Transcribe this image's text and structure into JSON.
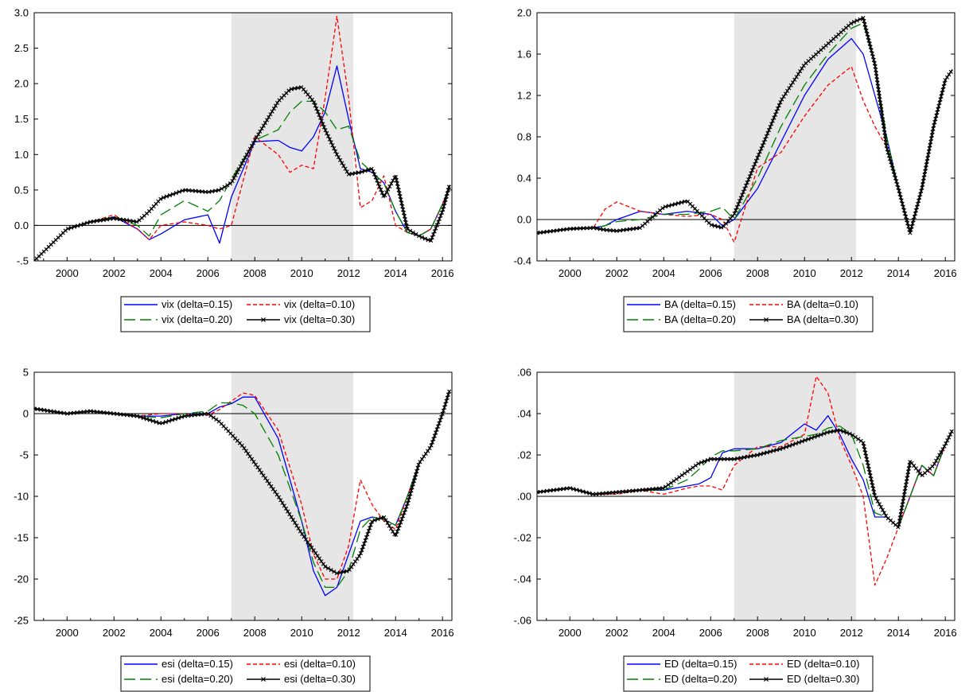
{
  "chart_data": [
    {
      "type": "line",
      "x": [
        1998.5,
        2000,
        2001,
        2002,
        2003,
        2003.5,
        2004,
        2005,
        2006,
        2006.5,
        2007,
        2008,
        2009,
        2009.5,
        2010,
        2010.5,
        2011,
        2011.5,
        2012,
        2012.5,
        2013,
        2013.5,
        2014,
        2014.5,
        2015,
        2015.5,
        2016,
        2016.3
      ],
      "xticks": [
        2000,
        2002,
        2004,
        2006,
        2008,
        2010,
        2012,
        2014,
        2016
      ],
      "xtick_labels": [
        "2000",
        "2002",
        "2004",
        "2006",
        "2008",
        "2010",
        "2012",
        "2014",
        "2016"
      ],
      "xlim": [
        1998.6,
        2016.4
      ],
      "ylim": [
        -0.5,
        3.0
      ],
      "yticks": [
        -0.5,
        0.0,
        0.5,
        1.0,
        1.5,
        2.0,
        2.5,
        3.0
      ],
      "ytick_labels": [
        "-.5",
        "0.0",
        "0.5",
        "1.0",
        "1.5",
        "2.0",
        "2.5",
        "3.0"
      ],
      "shade": [
        2007.0,
        2012.2
      ],
      "zero_line": 0,
      "series": [
        {
          "name": "vix (delta=0.15)",
          "color": "#0000ff",
          "dash": "",
          "values": [
            -0.5,
            -0.05,
            0.05,
            0.12,
            -0.05,
            -0.2,
            -0.12,
            0.08,
            0.15,
            -0.25,
            0.4,
            1.18,
            1.2,
            1.1,
            1.05,
            1.25,
            1.6,
            2.25,
            1.5,
            0.8,
            0.75,
            0.6,
            0.2,
            -0.1,
            -0.15,
            -0.05,
            0.3,
            0.55
          ]
        },
        {
          "name": "vix (delta=0.10)",
          "color": "#ff0000",
          "dash": "5,3",
          "values": [
            -0.5,
            -0.05,
            0.05,
            0.15,
            -0.05,
            -0.2,
            0.0,
            0.05,
            0.0,
            -0.05,
            0.0,
            1.25,
            1.0,
            0.75,
            0.85,
            0.8,
            1.8,
            2.95,
            1.8,
            0.25,
            0.35,
            0.7,
            0.0,
            -0.1,
            -0.15,
            -0.05,
            0.3,
            0.55
          ]
        },
        {
          "name": "vix (delta=0.20)",
          "color": "#008000",
          "dash": "14,6",
          "values": [
            -0.5,
            -0.05,
            0.05,
            0.12,
            0.0,
            -0.15,
            0.15,
            0.35,
            0.2,
            0.35,
            0.65,
            1.2,
            1.35,
            1.6,
            1.75,
            1.75,
            1.6,
            1.35,
            1.4,
            0.9,
            0.75,
            0.6,
            0.2,
            -0.1,
            -0.15,
            -0.05,
            0.3,
            0.55
          ]
        },
        {
          "name": "vix (delta=0.30)",
          "color": "#000000",
          "dash": "",
          "marker": true,
          "values": [
            -0.5,
            -0.05,
            0.05,
            0.1,
            0.05,
            0.2,
            0.38,
            0.5,
            0.47,
            0.5,
            0.6,
            1.2,
            1.75,
            1.92,
            1.95,
            1.75,
            1.35,
            1.0,
            0.72,
            0.75,
            0.8,
            0.4,
            0.7,
            -0.05,
            -0.15,
            -0.22,
            0.2,
            0.57
          ]
        }
      ]
    },
    {
      "type": "line",
      "x": [
        1998.5,
        2000,
        2001,
        2001.5,
        2002,
        2003,
        2004,
        2005,
        2006,
        2006.5,
        2007,
        2008,
        2009,
        2010,
        2011,
        2012,
        2012.5,
        2013,
        2013.5,
        2014,
        2014.5,
        2015,
        2015.5,
        2016,
        2016.3
      ],
      "xticks": [
        2000,
        2002,
        2004,
        2006,
        2008,
        2010,
        2012,
        2014,
        2016
      ],
      "xtick_labels": [
        "2000",
        "2002",
        "2004",
        "2006",
        "2008",
        "2010",
        "2012",
        "2014",
        "2016"
      ],
      "xlim": [
        1998.6,
        2016.4
      ],
      "ylim": [
        -0.4,
        2.0
      ],
      "yticks": [
        -0.4,
        0.0,
        0.4,
        0.8,
        1.2,
        1.6,
        2.0
      ],
      "ytick_labels": [
        "-0.4",
        "0.0",
        "0.4",
        "0.8",
        "1.2",
        "1.6",
        "2.0"
      ],
      "shade": [
        2007.0,
        2012.2
      ],
      "zero_line": 0,
      "series": [
        {
          "name": "BA (delta=0.15)",
          "color": "#0000ff",
          "dash": "",
          "values": [
            -0.13,
            -0.09,
            -0.08,
            -0.06,
            0.0,
            0.08,
            0.05,
            0.08,
            0.05,
            -0.06,
            0.0,
            0.3,
            0.75,
            1.2,
            1.55,
            1.75,
            1.6,
            1.2,
            0.8,
            0.3,
            -0.12,
            0.3,
            0.9,
            1.35,
            1.45
          ]
        },
        {
          "name": "BA (delta=0.10)",
          "color": "#ff0000",
          "dash": "5,3",
          "values": [
            -0.13,
            -0.09,
            -0.08,
            0.1,
            0.17,
            0.08,
            0.05,
            0.03,
            0.05,
            0.0,
            -0.22,
            0.5,
            0.65,
            1.0,
            1.3,
            1.48,
            1.15,
            0.9,
            0.7,
            0.3,
            -0.12,
            0.3,
            0.9,
            1.35,
            1.45
          ]
        },
        {
          "name": "BA (delta=0.20)",
          "color": "#008000",
          "dash": "14,6",
          "values": [
            -0.13,
            -0.09,
            -0.08,
            -0.06,
            -0.02,
            0.0,
            0.05,
            0.05,
            0.08,
            0.12,
            0.0,
            0.4,
            0.9,
            1.3,
            1.6,
            1.85,
            1.9,
            1.5,
            0.8,
            0.3,
            -0.12,
            0.3,
            0.9,
            1.35,
            1.45
          ]
        },
        {
          "name": "BA (delta=0.30)",
          "color": "#000000",
          "dash": "",
          "marker": true,
          "values": [
            -0.13,
            -0.09,
            -0.08,
            -0.1,
            -0.11,
            -0.08,
            0.12,
            0.18,
            -0.05,
            -0.08,
            0.05,
            0.6,
            1.15,
            1.5,
            1.7,
            1.9,
            1.95,
            1.5,
            0.7,
            0.3,
            -0.13,
            0.3,
            0.9,
            1.35,
            1.45
          ]
        }
      ]
    },
    {
      "type": "line",
      "x": [
        1998.5,
        2000,
        2001,
        2002,
        2003,
        2004,
        2005,
        2006,
        2006.5,
        2007,
        2007.5,
        2008,
        2009,
        2010,
        2010.5,
        2011,
        2011.5,
        2012,
        2012.5,
        2013,
        2013.5,
        2014,
        2014.5,
        2015,
        2015.5,
        2016,
        2016.3
      ],
      "xticks": [
        2000,
        2002,
        2004,
        2006,
        2008,
        2010,
        2012,
        2014,
        2016
      ],
      "xtick_labels": [
        "2000",
        "2002",
        "2004",
        "2006",
        "2008",
        "2010",
        "2012",
        "2014",
        "2016"
      ],
      "xlim": [
        1998.6,
        2016.4
      ],
      "ylim": [
        -25,
        5
      ],
      "yticks": [
        -25,
        -20,
        -15,
        -10,
        -5,
        0,
        5
      ],
      "ytick_labels": [
        "-25",
        "-20",
        "-15",
        "-10",
        "-5",
        "0",
        "5"
      ],
      "shade": [
        2007.0,
        2012.2
      ],
      "zero_line": 0,
      "series": [
        {
          "name": "esi (delta=0.15)",
          "color": "#0000ff",
          "dash": "",
          "values": [
            0.6,
            0.0,
            0.3,
            0.0,
            -0.3,
            -0.3,
            0.0,
            0.0,
            0.8,
            1.2,
            2.0,
            2.0,
            -3.0,
            -13.0,
            -19.0,
            -22.0,
            -21.0,
            -17.0,
            -13.0,
            -12.5,
            -12.8,
            -13.5,
            -10.0,
            -6.0,
            -4.0,
            0.0,
            2.8
          ]
        },
        {
          "name": "esi (delta=0.10)",
          "color": "#ff0000",
          "dash": "5,3",
          "values": [
            0.6,
            0.0,
            0.3,
            0.0,
            -0.3,
            0.0,
            0.0,
            -0.2,
            0.5,
            1.5,
            2.5,
            2.2,
            -2.0,
            -11.0,
            -17.0,
            -20.0,
            -20.0,
            -16.0,
            -8.0,
            -11.0,
            -13.0,
            -14.0,
            -10.0,
            -6.0,
            -4.0,
            0.0,
            2.8
          ]
        },
        {
          "name": "esi (delta=0.20)",
          "color": "#008000",
          "dash": "14,6",
          "values": [
            0.6,
            0.0,
            0.3,
            0.0,
            -0.3,
            -0.5,
            0.0,
            0.3,
            1.3,
            1.3,
            1.0,
            0.0,
            -5.0,
            -13.0,
            -18.0,
            -21.0,
            -21.0,
            -19.0,
            -14.0,
            -12.5,
            -12.8,
            -13.5,
            -10.0,
            -6.0,
            -4.0,
            0.0,
            2.8
          ]
        },
        {
          "name": "esi (delta=0.30)",
          "color": "#000000",
          "dash": "",
          "marker": true,
          "values": [
            0.6,
            0.0,
            0.3,
            0.0,
            -0.3,
            -1.2,
            -0.3,
            0.0,
            -1.0,
            -2.5,
            -4.0,
            -6.0,
            -10.0,
            -14.5,
            -16.5,
            -18.5,
            -19.3,
            -19.0,
            -17.0,
            -13.0,
            -12.5,
            -14.8,
            -11.0,
            -6.0,
            -4.0,
            0.0,
            2.8
          ]
        }
      ]
    },
    {
      "type": "line",
      "x": [
        1998.5,
        2000,
        2001,
        2002,
        2003,
        2004,
        2005,
        2005.5,
        2006,
        2006.5,
        2007,
        2008,
        2009,
        2010,
        2010.5,
        2011,
        2011.5,
        2012,
        2012.5,
        2013,
        2013.5,
        2014,
        2014.5,
        2015,
        2015.5,
        2016,
        2016.3
      ],
      "xticks": [
        2000,
        2002,
        2004,
        2006,
        2008,
        2010,
        2012,
        2014,
        2016
      ],
      "xtick_labels": [
        "2000",
        "2002",
        "2004",
        "2006",
        "2008",
        "2010",
        "2012",
        "2014",
        "2016"
      ],
      "xlim": [
        1998.6,
        2016.4
      ],
      "ylim": [
        -0.06,
        0.06
      ],
      "yticks": [
        -0.06,
        -0.04,
        -0.02,
        0.0,
        0.02,
        0.04,
        0.06
      ],
      "ytick_labels": [
        "-.06",
        "-.04",
        "-.02",
        ".00",
        ".02",
        ".04",
        ".06"
      ],
      "shade": [
        2007.0,
        2012.2
      ],
      "zero_line": 0,
      "series": [
        {
          "name": "ED (delta=0.15)",
          "color": "#0000ff",
          "dash": "",
          "values": [
            0.002,
            0.004,
            0.001,
            0.002,
            0.003,
            0.003,
            0.005,
            0.006,
            0.009,
            0.021,
            0.023,
            0.023,
            0.026,
            0.035,
            0.032,
            0.039,
            0.03,
            0.018,
            0.008,
            -0.01,
            -0.01,
            -0.015,
            0.0,
            0.015,
            0.01,
            0.025,
            0.032
          ]
        },
        {
          "name": "ED (delta=0.10)",
          "color": "#ff0000",
          "dash": "5,3",
          "values": [
            0.002,
            0.004,
            0.001,
            0.001,
            0.003,
            0.001,
            0.004,
            0.005,
            0.005,
            0.003,
            0.015,
            0.024,
            0.024,
            0.03,
            0.058,
            0.05,
            0.028,
            0.015,
            0.0,
            -0.043,
            -0.03,
            -0.015,
            0.0,
            0.015,
            0.01,
            0.025,
            0.032
          ]
        },
        {
          "name": "ED (delta=0.20)",
          "color": "#008000",
          "dash": "14,6",
          "values": [
            0.002,
            0.004,
            0.001,
            0.002,
            0.003,
            0.003,
            0.008,
            0.013,
            0.019,
            0.022,
            0.022,
            0.023,
            0.027,
            0.029,
            0.03,
            0.033,
            0.034,
            0.03,
            0.015,
            -0.008,
            -0.01,
            -0.015,
            0.0,
            0.015,
            0.01,
            0.025,
            0.032
          ]
        },
        {
          "name": "ED (delta=0.30)",
          "color": "#000000",
          "dash": "",
          "marker": true,
          "values": [
            0.002,
            0.004,
            0.001,
            0.002,
            0.003,
            0.004,
            0.012,
            0.016,
            0.018,
            0.018,
            0.018,
            0.02,
            0.023,
            0.027,
            0.029,
            0.031,
            0.032,
            0.03,
            0.026,
            0.0,
            -0.01,
            -0.015,
            0.017,
            0.01,
            0.015,
            0.025,
            0.032
          ]
        }
      ]
    }
  ]
}
